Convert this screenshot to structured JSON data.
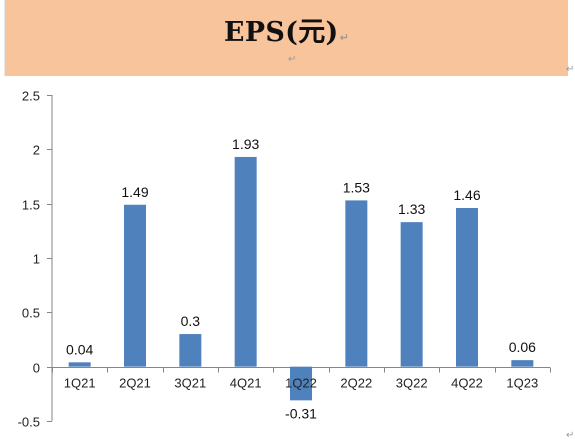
{
  "header": {
    "title": "EPS(元)",
    "return_mark": "↵",
    "band_color": "#f8c49c"
  },
  "chart_data": {
    "type": "bar",
    "title": "",
    "xlabel": "",
    "ylabel": "",
    "categories": [
      "1Q21",
      "2Q21",
      "3Q21",
      "4Q21",
      "1Q22",
      "2Q22",
      "3Q22",
      "4Q22",
      "1Q23"
    ],
    "values": [
      0.04,
      1.49,
      0.3,
      1.93,
      -0.31,
      1.53,
      1.33,
      1.46,
      0.06
    ],
    "data_labels": [
      "0.04",
      "1.49",
      "0.3",
      "1.93",
      "-0.31",
      "1.53",
      "1.33",
      "1.46",
      "0.06"
    ],
    "ylim": [
      -0.5,
      2.5
    ],
    "yticks": [
      -0.5,
      0,
      0.5,
      1,
      1.5,
      2,
      2.5
    ],
    "ytick_labels": [
      "-0.5",
      "0",
      "0.5",
      "1",
      "1.5",
      "2",
      "2.5"
    ],
    "grid": false,
    "legend": "none",
    "bar_color": "#4f81bd"
  }
}
